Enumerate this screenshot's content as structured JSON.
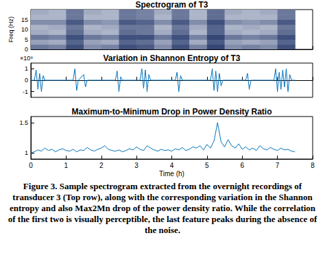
{
  "chart_data": [
    {
      "type": "heatmap",
      "title": "Spectrogram of T3",
      "ylabel": "Freq (Hz)",
      "x_bins": [
        0,
        0.5,
        1,
        1.5,
        2,
        2.5,
        3,
        3.5,
        4,
        4.5,
        5,
        5.5,
        6,
        6.5,
        7,
        7.5
      ],
      "y_bins": [
        0,
        2.5,
        5,
        7.5,
        10,
        12.5,
        15,
        17.5,
        20
      ],
      "values": [
        [
          0.6,
          0.55,
          0.8,
          0.5,
          0.55,
          0.8,
          0.75,
          0.5,
          0.8,
          0.55,
          0.85,
          0.5,
          0.55,
          0.5,
          0.8
        ],
        [
          0.4,
          0.35,
          0.7,
          0.4,
          0.35,
          0.7,
          0.65,
          0.4,
          0.7,
          0.35,
          0.75,
          0.4,
          0.35,
          0.4,
          0.7
        ],
        [
          0.6,
          0.55,
          0.8,
          0.6,
          0.55,
          0.8,
          0.8,
          0.6,
          0.8,
          0.55,
          0.85,
          0.6,
          0.55,
          0.6,
          0.8
        ],
        [
          0.35,
          0.3,
          0.65,
          0.35,
          0.3,
          0.65,
          0.6,
          0.35,
          0.65,
          0.3,
          0.7,
          0.35,
          0.3,
          0.35,
          0.65
        ],
        [
          0.3,
          0.35,
          0.6,
          0.3,
          0.35,
          0.6,
          0.6,
          0.3,
          0.6,
          0.35,
          0.7,
          0.3,
          0.35,
          0.3,
          0.6
        ],
        [
          0.5,
          0.5,
          0.75,
          0.5,
          0.45,
          0.75,
          0.7,
          0.5,
          0.75,
          0.5,
          0.8,
          0.5,
          0.45,
          0.5,
          0.75
        ],
        [
          0.3,
          0.3,
          0.6,
          0.3,
          0.3,
          0.6,
          0.55,
          0.3,
          0.6,
          0.3,
          0.65,
          0.3,
          0.3,
          0.3,
          0.6
        ],
        [
          0.35,
          0.3,
          0.6,
          0.35,
          0.3,
          0.6,
          0.55,
          0.35,
          0.6,
          0.3,
          0.65,
          0.35,
          0.3,
          0.35,
          0.6
        ]
      ],
      "color_range": [
        0,
        1
      ],
      "color": [
        "#eef1f7",
        "#14285e"
      ],
      "xlim": [
        0,
        8
      ],
      "xticks": [
        0,
        1,
        2,
        3,
        4,
        5,
        6,
        7,
        8
      ],
      "ylim": [
        0,
        20
      ],
      "yticks": [
        0,
        5,
        10,
        15
      ],
      "tick_labels": "y"
    },
    {
      "type": "line",
      "title": "Variation in Shannon Entropy of T3",
      "annotation": "×10⁹",
      "x": [
        0,
        0.1,
        0.15,
        0.2,
        0.25,
        0.3,
        0.35,
        0.4,
        1.2,
        1.25,
        1.3,
        1.35,
        1.5,
        1.55,
        1.6,
        2.4,
        2.45,
        2.5,
        2.55,
        2.6,
        3.1,
        3.15,
        3.2,
        3.25,
        3.3,
        3.35,
        3.4,
        4.1,
        4.15,
        4.2,
        4.25,
        4.3,
        5.1,
        5.15,
        5.2,
        5.25,
        5.3,
        5.35,
        5.4,
        5.45,
        6.1,
        6.15,
        6.2,
        6.25,
        6.9,
        6.95,
        7.0,
        7.05,
        7.1,
        7.15,
        7.2,
        7.25,
        7.3,
        7.35,
        7.4,
        7.5
      ],
      "values": [
        0,
        0,
        0.9,
        -0.8,
        0.6,
        -1.0,
        0.4,
        0,
        0,
        1.0,
        -0.9,
        0,
        0.5,
        -0.6,
        0,
        0,
        0.8,
        -1.0,
        0.3,
        0,
        0,
        1.0,
        -0.7,
        0.9,
        -1.0,
        0.5,
        0,
        0,
        0.7,
        -1.0,
        0.4,
        0,
        0,
        1.0,
        -0.9,
        0.8,
        -1.0,
        0.6,
        -0.5,
        0,
        0,
        0.6,
        -0.8,
        0,
        0,
        1.0,
        -1.0,
        0.7,
        -0.8,
        0.9,
        -0.6,
        1.0,
        -1.0,
        0.5,
        0,
        0
      ],
      "color": "#0072bd",
      "xlim": [
        0,
        8
      ],
      "xticks": [
        0,
        1,
        2,
        3,
        4,
        5,
        6,
        7,
        8
      ],
      "ylim": [
        -1.5,
        1.5
      ],
      "yticks": [
        -1,
        0,
        1
      ],
      "tick_labels": "y"
    },
    {
      "type": "line",
      "title": "Maximum-to-Minimum Drop in Power Density Ratio",
      "xlabel": "Time (h)",
      "x": [
        0,
        0.1,
        0.2,
        0.3,
        0.4,
        0.5,
        0.6,
        0.7,
        0.8,
        0.9,
        1.0,
        1.1,
        1.2,
        1.3,
        1.4,
        1.5,
        1.6,
        1.7,
        1.8,
        1.9,
        2.0,
        2.1,
        2.2,
        2.3,
        2.4,
        2.5,
        2.6,
        2.7,
        2.8,
        2.9,
        3.0,
        3.1,
        3.2,
        3.3,
        3.4,
        3.5,
        3.6,
        3.7,
        3.8,
        3.9,
        4.0,
        4.1,
        4.2,
        4.3,
        4.4,
        4.5,
        4.6,
        4.7,
        4.8,
        4.9,
        5.0,
        5.1,
        5.2,
        5.3,
        5.4,
        5.5,
        5.6,
        5.7,
        5.8,
        5.9,
        6.0,
        6.1,
        6.2,
        6.3,
        6.4,
        6.5,
        6.6,
        6.7,
        6.8,
        6.9,
        7.0,
        7.1,
        7.2,
        7.3,
        7.4,
        7.5
      ],
      "values": [
        1.0,
        1.02,
        1.05,
        1.03,
        1.08,
        1.04,
        1.06,
        1.02,
        1.05,
        1.07,
        1.04,
        1.03,
        1.06,
        1.02,
        1.05,
        1.04,
        1.09,
        1.05,
        1.03,
        1.06,
        1.08,
        1.12,
        1.06,
        1.04,
        1.03,
        1.05,
        1.02,
        1.04,
        1.07,
        1.05,
        1.1,
        1.06,
        1.04,
        1.12,
        1.08,
        1.05,
        1.03,
        1.06,
        1.04,
        1.05,
        1.03,
        1.07,
        1.05,
        1.09,
        1.04,
        1.06,
        1.1,
        1.08,
        1.12,
        1.05,
        1.14,
        1.08,
        1.2,
        1.5,
        1.18,
        1.1,
        1.22,
        1.12,
        1.08,
        1.15,
        1.06,
        1.1,
        1.05,
        1.08,
        1.04,
        1.12,
        1.07,
        1.05,
        1.09,
        1.06,
        1.04,
        1.08,
        1.05,
        1.06,
        1.03,
        1.02
      ],
      "color": "#0072bd",
      "xlim": [
        0,
        8
      ],
      "xticks": [
        0,
        1,
        2,
        3,
        4,
        5,
        6,
        7,
        8
      ],
      "ylim": [
        0.9,
        1.6
      ],
      "yticks": [
        1,
        1.5
      ]
    }
  ],
  "caption": "Figure 3. Sample spectrogram extracted from the overnight recordings of transducer 3 (Top row), along with the corresponding variation in the Shannon entropy and also Max2Mn drop of the power density ratio. While the correlation of the first two is visually perceptible, the last feature peaks during the absence of the noise."
}
